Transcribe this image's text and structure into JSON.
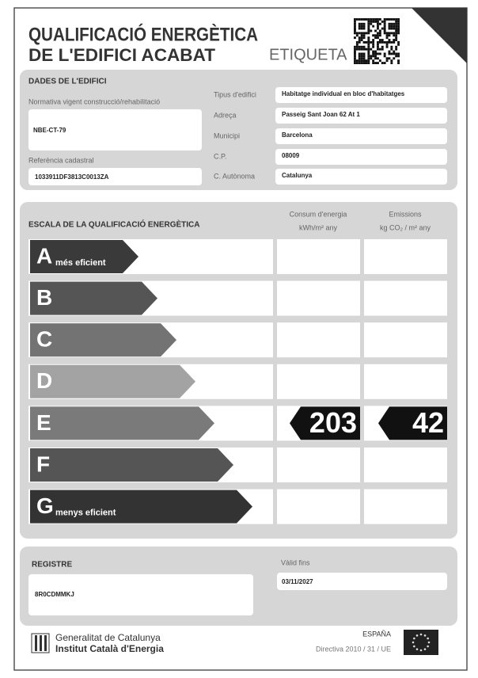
{
  "header": {
    "title": [
      "QUALIFICACIÓ ENERGÈTICA",
      "DE L'EDIFICI ACABAT"
    ],
    "label": "ETIQUETA"
  },
  "building_data": {
    "title": "DADES DE L'EDIFICI",
    "regulation": {
      "label": "Normativa vigent construcció/rehabilitació",
      "value": "NBE-CT-79"
    },
    "cadastral_reference": {
      "label": "Referència cadastral",
      "value": "1033911DF3813C0013ZA"
    },
    "fields": [
      {
        "label": "Tipus d'edifici",
        "value": "Habitatge individual en bloc d'habitatges"
      },
      {
        "label": "Adreça",
        "value": "Passeig Sant Joan 62 At 1"
      },
      {
        "label": "Municipi",
        "value": "Barcelona"
      },
      {
        "label": "C.P.",
        "value": "08009"
      },
      {
        "label": "C. Autònoma",
        "value": "Catalunya"
      }
    ]
  },
  "scale": {
    "title": "ESCALA DE LA QUALIFICACIÓ ENERGÈTICA",
    "columns": [
      {
        "name": "Consum d'energia",
        "unit": "kWh/m² any"
      },
      {
        "name": "Emissions",
        "unit": "kg CO₂ / m² any"
      }
    ],
    "classes": [
      {
        "letter": "A",
        "label": "més eficient"
      },
      {
        "letter": "B"
      },
      {
        "letter": "C"
      },
      {
        "letter": "D"
      },
      {
        "letter": "E",
        "consumption": 203,
        "emissions": 42
      },
      {
        "letter": "F"
      },
      {
        "letter": "G",
        "label": "menys eficient"
      }
    ]
  },
  "register": {
    "title": "REGISTRE",
    "value": "8R0CDMMKJ",
    "valid_label": "Vàlid fins",
    "valid_until": "03/11/2027"
  },
  "footer": {
    "institution": [
      "Generalitat de Catalunya",
      "Institut Català d'Energia"
    ],
    "country": "ESPAÑA",
    "directive": "Directiva 2010 / 31 / UE"
  }
}
